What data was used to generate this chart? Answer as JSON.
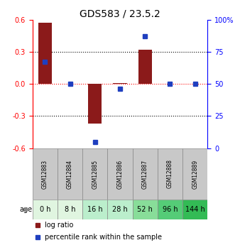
{
  "title": "GDS583 / 23.5.2",
  "samples": [
    "GSM12883",
    "GSM12884",
    "GSM12885",
    "GSM12886",
    "GSM12887",
    "GSM12888",
    "GSM12889"
  ],
  "ages": [
    "0 h",
    "8 h",
    "16 h",
    "28 h",
    "52 h",
    "96 h",
    "144 h"
  ],
  "log_ratios": [
    0.57,
    0.0,
    -0.37,
    0.01,
    0.32,
    0.0,
    0.0
  ],
  "percentile_ranks": [
    67,
    50,
    5,
    46,
    87,
    50,
    50
  ],
  "bar_color": "#8B1A1A",
  "dot_color": "#1F3FBF",
  "ylim": [
    -0.6,
    0.6
  ],
  "yticks_left": [
    -0.6,
    -0.3,
    0.0,
    0.3,
    0.6
  ],
  "yticks_right": [
    0,
    25,
    50,
    75,
    100
  ],
  "age_colors": [
    "#e0f5e0",
    "#e0f5e0",
    "#bbeecc",
    "#bbeecc",
    "#88dd99",
    "#55cc77",
    "#33bb55"
  ],
  "gsm_box_color": "#c8c8c8",
  "legend_items": [
    {
      "label": "log ratio",
      "color": "#8B1A1A"
    },
    {
      "label": "percentile rank within the sample",
      "color": "#1F3FBF"
    }
  ]
}
